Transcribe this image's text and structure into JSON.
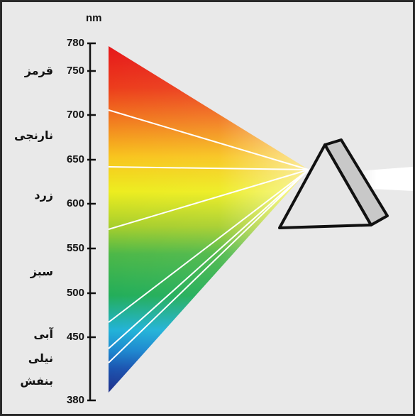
{
  "axis": {
    "unit": "nm",
    "ticks": [
      "780",
      "750",
      "700",
      "650",
      "600",
      "550",
      "500",
      "450",
      "380"
    ]
  },
  "color_labels": {
    "red": "قرمز",
    "orange": "نارنجی",
    "yellow": "زرد",
    "green": "سبز",
    "blue": "آبی",
    "indigo": "نیلی",
    "violet": "بنفش"
  },
  "colors": {
    "red": "#e8161b",
    "orange": "#f58c1e",
    "yellow": "#f5e31a",
    "green": "#3cb14a",
    "cyan": "#1fa8df",
    "blue": "#1b6fc0",
    "violet": "#1f2f8e",
    "frame": "#2a2a2a",
    "background": "#e9e9e9"
  }
}
